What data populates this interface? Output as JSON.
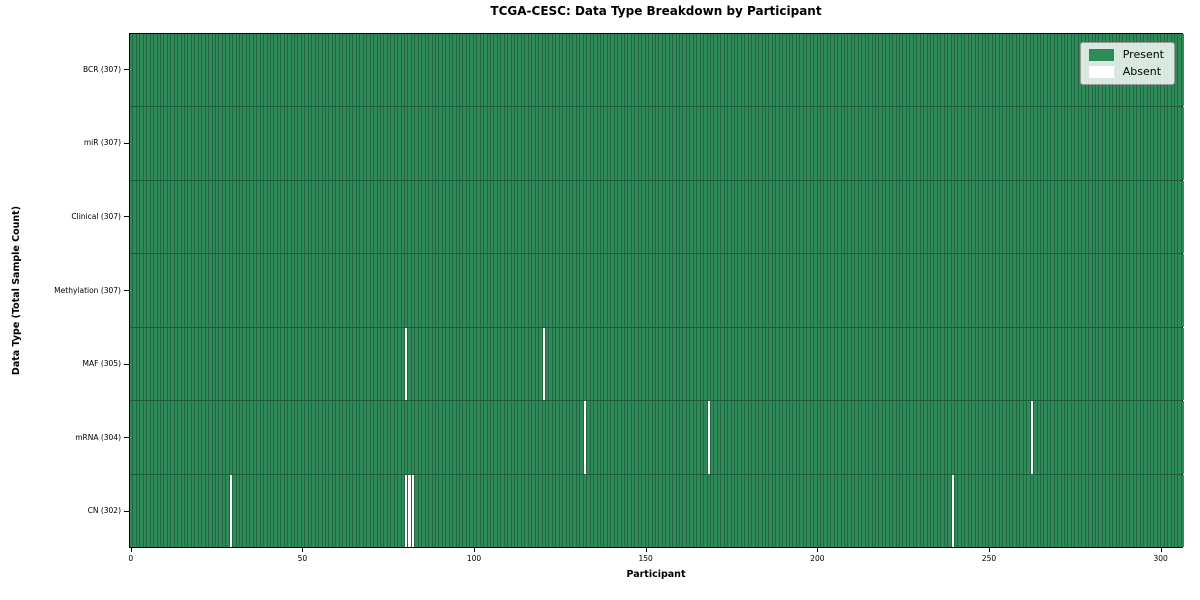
{
  "chart_data": {
    "type": "heatmap",
    "title": "TCGA-CESC: Data Type Breakdown by Participant",
    "xlabel": "Participant",
    "ylabel": "Data Type (Total Sample Count)",
    "n_participants": 307,
    "x_ticks": [
      0,
      50,
      100,
      150,
      200,
      250,
      300
    ],
    "xlim": [
      -0.5,
      306.5
    ],
    "grid": "cell-borders",
    "legend_position": "upper right",
    "rows": [
      {
        "label": "BCR (307)",
        "data_type": "BCR",
        "present_count": 307,
        "absent_participants": []
      },
      {
        "label": "miR (307)",
        "data_type": "miR",
        "present_count": 307,
        "absent_participants": []
      },
      {
        "label": "Clinical (307)",
        "data_type": "Clinical",
        "present_count": 307,
        "absent_participants": []
      },
      {
        "label": "Methylation (307)",
        "data_type": "Methylation",
        "present_count": 307,
        "absent_participants": []
      },
      {
        "label": "MAF (305)",
        "data_type": "MAF",
        "present_count": 305,
        "absent_participants": [
          80,
          120
        ]
      },
      {
        "label": "mRNA (304)",
        "data_type": "mRNA",
        "present_count": 304,
        "absent_participants": [
          132,
          168,
          262
        ]
      },
      {
        "label": "CN (302)",
        "data_type": "CN",
        "present_count": 302,
        "absent_participants": [
          29,
          80,
          81,
          82,
          239
        ]
      }
    ],
    "legend": [
      {
        "label": "Present",
        "color": "#2e8b57"
      },
      {
        "label": "Absent",
        "color": "#ffffff"
      }
    ],
    "colors": {
      "present": "#2e8b57",
      "absent": "#ffffff",
      "cell_edge": "#226644",
      "row_separator": "#1d5c39",
      "plot_border": "#000000"
    }
  }
}
